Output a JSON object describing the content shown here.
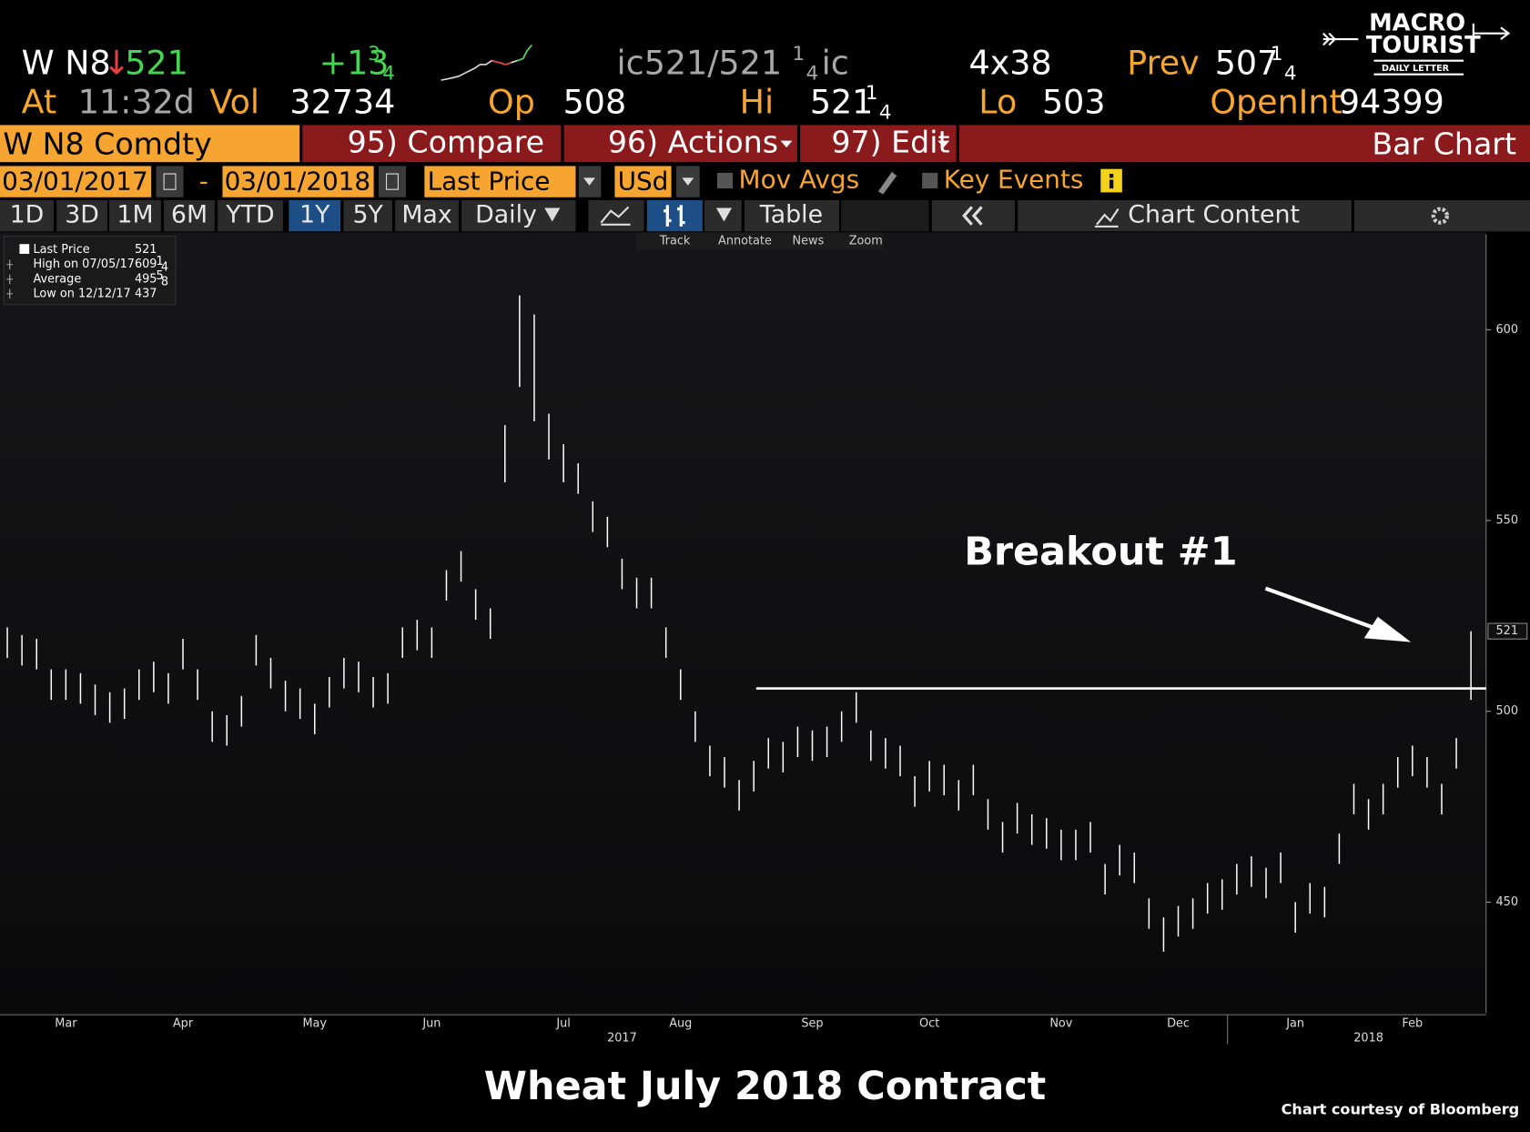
{
  "header": {
    "ticker": "W N8",
    "arrow": "↓",
    "last": "521",
    "change": "+13",
    "change_num": "3",
    "change_den": "4",
    "quote": "ic521/521",
    "quote_num": "1",
    "quote_den": "4",
    "quote_suffix": "ic",
    "size": "4x38",
    "prev_label": "Prev",
    "prev": "507",
    "prev_num": "1",
    "prev_den": "4",
    "time_label": "At",
    "time": "11:32d",
    "vol_label": "Vol",
    "vol": "32734",
    "open_label": "Op",
    "open": "508",
    "high_label": "Hi",
    "high": "521",
    "high_num": "1",
    "high_den": "4",
    "low_label": "Lo",
    "low": "503",
    "oi_label": "OpenInt",
    "oi": "94399"
  },
  "logo": {
    "line1": "MACRO",
    "line2": "TOURIST",
    "line3": "DAILY LETTER"
  },
  "menu": {
    "security": "W N8 Comdty",
    "compare": "95) Compare",
    "actions": "96) Actions",
    "edit": "97) Edit",
    "view": "Bar Chart"
  },
  "controls": {
    "start": "03/01/2017",
    "dash": "-",
    "end": "03/01/2018",
    "field": "Last Price",
    "currency": "USd",
    "mov_avgs": "Mov Avgs",
    "key_events": "Key Events"
  },
  "tabs": {
    "periods": [
      "1D",
      "3D",
      "1M",
      "6M",
      "YTD",
      "1Y",
      "5Y",
      "Max"
    ],
    "frequency": "Daily",
    "table": "Table",
    "chart_content": "Chart Content"
  },
  "tools": [
    "Track",
    "Annotate",
    "News",
    "Zoom"
  ],
  "legend_box": [
    {
      "label": "Last Price",
      "value": "521"
    },
    {
      "label": "High on 07/05/17",
      "value": "609",
      "num": "1",
      "den": "4"
    },
    {
      "label": "Average",
      "value": "495",
      "num": "5",
      "den": "8"
    },
    {
      "label": "Low on 12/12/17",
      "value": "437"
    }
  ],
  "chart_data": {
    "type": "bar_ohlc",
    "title": "Wheat July 2018 Contract",
    "caption": "Chart courtesy of Bloomberg",
    "annotation": "Breakout #1",
    "color": "#ffffff",
    "categories": [
      null,
      null,
      null,
      null,
      "Mar",
      null,
      null,
      null,
      null,
      null,
      null,
      null,
      "Apr",
      null,
      null,
      null,
      null,
      null,
      null,
      null,
      null,
      "May",
      null,
      null,
      null,
      null,
      null,
      null,
      null,
      "Jun",
      null,
      null,
      null,
      null,
      null,
      null,
      null,
      null,
      "Jul",
      null,
      null,
      null,
      null,
      null,
      null,
      null,
      "Aug",
      null,
      null,
      null,
      null,
      null,
      null,
      null,
      null,
      "Sep",
      null,
      null,
      null,
      null,
      null,
      null,
      null,
      "Oct",
      null,
      null,
      null,
      null,
      null,
      null,
      null,
      null,
      "Nov",
      null,
      null,
      null,
      null,
      null,
      null,
      null,
      "Dec",
      null,
      null,
      null,
      null,
      null,
      null,
      null,
      "Jan",
      null,
      null,
      null,
      null,
      null,
      null,
      null,
      "Feb",
      null,
      null,
      null,
      null
    ],
    "years": [
      null,
      null,
      null,
      null,
      null,
      null,
      null,
      null,
      null,
      null,
      null,
      null,
      null,
      null,
      null,
      null,
      null,
      null,
      null,
      null,
      null,
      null,
      null,
      null,
      null,
      null,
      null,
      null,
      null,
      null,
      null,
      null,
      null,
      null,
      null,
      null,
      null,
      null,
      null,
      null,
      null,
      null,
      "2017",
      null,
      null,
      null,
      null,
      null,
      null,
      null,
      null,
      null,
      null,
      null,
      null,
      null,
      null,
      null,
      null,
      null,
      null,
      null,
      null,
      null,
      null,
      null,
      null,
      null,
      null,
      null,
      null,
      null,
      null,
      null,
      null,
      null,
      null,
      null,
      null,
      null,
      null,
      null,
      null,
      null,
      null,
      null,
      null,
      null,
      null,
      null,
      null,
      null,
      null,
      "2018",
      null,
      null,
      null,
      null,
      null,
      null,
      null
    ],
    "high": [
      522,
      520,
      519,
      511,
      511,
      510,
      507,
      505,
      506,
      511,
      513,
      510,
      519,
      511,
      500,
      499,
      504,
      520,
      514,
      508,
      506,
      502,
      509,
      514,
      513,
      509,
      510,
      522,
      524,
      522,
      537,
      542,
      532,
      527,
      575,
      609,
      604,
      578,
      570,
      565,
      555,
      551,
      540,
      535,
      535,
      522,
      511,
      500,
      491,
      488,
      482,
      487,
      493,
      492,
      496,
      495,
      496,
      500,
      505,
      495,
      493,
      491,
      483,
      487,
      486,
      482,
      486,
      477,
      471,
      476,
      473,
      472,
      469,
      469,
      471,
      460,
      465,
      463,
      451,
      446,
      449,
      451,
      455,
      456,
      460,
      462,
      459,
      463,
      450,
      455,
      454,
      468,
      481,
      477,
      481,
      488,
      491,
      488,
      481,
      493,
      521
    ],
    "low": [
      514,
      512,
      511,
      503,
      503,
      502,
      499,
      497,
      498,
      503,
      505,
      502,
      511,
      503,
      492,
      491,
      496,
      512,
      506,
      500,
      498,
      494,
      501,
      506,
      505,
      501,
      502,
      514,
      516,
      514,
      529,
      534,
      524,
      519,
      560,
      585,
      576,
      566,
      560,
      557,
      547,
      543,
      532,
      527,
      527,
      514,
      503,
      492,
      483,
      480,
      474,
      479,
      485,
      484,
      488,
      487,
      488,
      492,
      497,
      487,
      485,
      483,
      475,
      479,
      478,
      474,
      478,
      469,
      463,
      468,
      465,
      464,
      461,
      461,
      463,
      452,
      457,
      455,
      443,
      437,
      441,
      443,
      447,
      448,
      452,
      454,
      451,
      455,
      442,
      447,
      446,
      460,
      473,
      469,
      473,
      480,
      483,
      480,
      473,
      485,
      503
    ],
    "reference_line": 506,
    "last_price": 521,
    "ylim": [
      421,
      625
    ],
    "yticks": [
      450,
      500,
      550,
      600
    ]
  }
}
